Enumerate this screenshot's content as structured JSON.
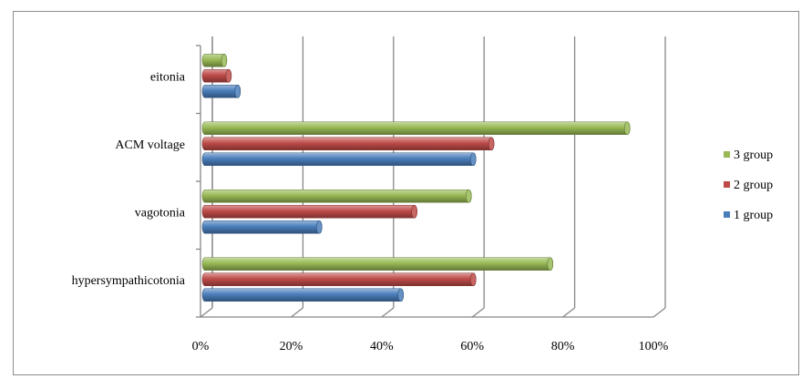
{
  "chart_data": {
    "type": "bar",
    "orientation": "horizontal",
    "style": "3d-cylinder",
    "categories": [
      "hypersympathicotonia",
      "vagotonia",
      "ACM voltage",
      "eitonia"
    ],
    "series": [
      {
        "name": "1 group",
        "color": "#4a7ebb",
        "values": [
          43,
          25,
          59,
          7
        ]
      },
      {
        "name": "2 group",
        "color": "#be4b48",
        "values": [
          59,
          46,
          63,
          5
        ]
      },
      {
        "name": "3 group",
        "color": "#98b954",
        "values": [
          76,
          58,
          93,
          4
        ]
      }
    ],
    "xlim": [
      0,
      100
    ],
    "x_ticks": [
      "0%",
      "20%",
      "40%",
      "60%",
      "80%",
      "100%"
    ],
    "grid": true,
    "legend_position": "right"
  }
}
